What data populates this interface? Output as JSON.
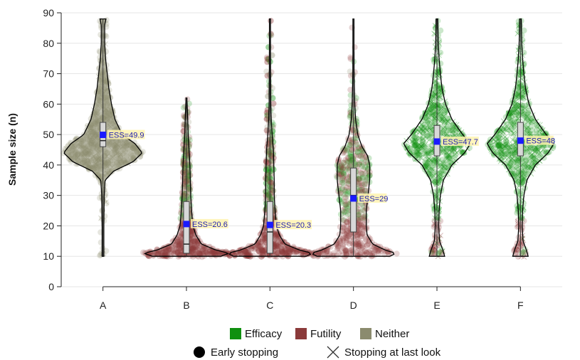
{
  "chart_data": {
    "type": "violin",
    "title": "",
    "xlabel": "",
    "ylabel": "Sample size (n)",
    "ylim": [
      0,
      90
    ],
    "yticks": [
      0,
      10,
      20,
      30,
      40,
      50,
      60,
      70,
      80,
      90
    ],
    "grid": true,
    "categories": [
      "A",
      "B",
      "C",
      "D",
      "E",
      "F"
    ],
    "groups": [
      {
        "name": "A",
        "ess": 49.9,
        "ess_label": "ESS=49.9",
        "q1": 46,
        "median": 48,
        "q3": 54,
        "min": 10,
        "max": 88,
        "dominant": "Neither",
        "violin": [
          [
            10,
            0.02
          ],
          [
            20,
            0.02
          ],
          [
            30,
            0.03
          ],
          [
            35,
            0.05
          ],
          [
            38,
            0.25
          ],
          [
            41,
            0.7
          ],
          [
            44,
            0.92
          ],
          [
            47,
            0.75
          ],
          [
            50,
            0.45
          ],
          [
            55,
            0.28
          ],
          [
            60,
            0.2
          ],
          [
            65,
            0.14
          ],
          [
            70,
            0.1
          ],
          [
            75,
            0.06
          ],
          [
            80,
            0.04
          ],
          [
            86,
            0.04
          ],
          [
            88,
            0.07
          ]
        ]
      },
      {
        "name": "B",
        "ess": 20.6,
        "ess_label": "ESS=20.6",
        "q1": 11,
        "median": 14,
        "q3": 28,
        "min": 10,
        "max": 62,
        "dominant": "Futility",
        "violin": [
          [
            10,
            0.8
          ],
          [
            11,
            1.0
          ],
          [
            12,
            0.7
          ],
          [
            14,
            0.35
          ],
          [
            17,
            0.22
          ],
          [
            20,
            0.15
          ],
          [
            25,
            0.12
          ],
          [
            30,
            0.1
          ],
          [
            35,
            0.09
          ],
          [
            40,
            0.08
          ],
          [
            45,
            0.06
          ],
          [
            50,
            0.04
          ],
          [
            55,
            0.03
          ],
          [
            62,
            0.01
          ]
        ]
      },
      {
        "name": "C",
        "ess": 20.3,
        "ess_label": "ESS=20.3",
        "q1": 11,
        "median": 18,
        "q3": 28,
        "min": 10,
        "max": 88,
        "dominant": "Futility",
        "violin": [
          [
            10,
            0.85
          ],
          [
            11,
            1.0
          ],
          [
            12,
            0.7
          ],
          [
            14,
            0.35
          ],
          [
            17,
            0.22
          ],
          [
            20,
            0.15
          ],
          [
            25,
            0.12
          ],
          [
            30,
            0.1
          ],
          [
            35,
            0.1
          ],
          [
            40,
            0.09
          ],
          [
            45,
            0.08
          ],
          [
            50,
            0.05
          ],
          [
            55,
            0.03
          ],
          [
            60,
            0.02
          ],
          [
            70,
            0.015
          ],
          [
            88,
            0.01
          ]
        ]
      },
      {
        "name": "D",
        "ess": 29,
        "ess_label": "ESS=29",
        "q1": 18,
        "median": 30,
        "q3": 39,
        "min": 10,
        "max": 88,
        "dominant": "Futility",
        "violin": [
          [
            10,
            0.85
          ],
          [
            11,
            1.0
          ],
          [
            12,
            0.75
          ],
          [
            14,
            0.45
          ],
          [
            17,
            0.32
          ],
          [
            20,
            0.3
          ],
          [
            25,
            0.3
          ],
          [
            30,
            0.34
          ],
          [
            35,
            0.38
          ],
          [
            40,
            0.38
          ],
          [
            43,
            0.33
          ],
          [
            46,
            0.2
          ],
          [
            50,
            0.1
          ],
          [
            55,
            0.05
          ],
          [
            60,
            0.03
          ],
          [
            70,
            0.015
          ],
          [
            88,
            0.01
          ]
        ]
      },
      {
        "name": "E",
        "ess": 47.7,
        "ess_label": "ESS=47.7",
        "q1": 43,
        "median": 48,
        "q3": 53,
        "min": 10,
        "max": 88,
        "dominant": "Efficacy",
        "violin": [
          [
            10,
            0.18
          ],
          [
            12,
            0.14
          ],
          [
            15,
            0.06
          ],
          [
            20,
            0.04
          ],
          [
            25,
            0.05
          ],
          [
            30,
            0.08
          ],
          [
            35,
            0.15
          ],
          [
            40,
            0.35
          ],
          [
            44,
            0.65
          ],
          [
            47,
            0.78
          ],
          [
            50,
            0.6
          ],
          [
            55,
            0.35
          ],
          [
            60,
            0.2
          ],
          [
            65,
            0.12
          ],
          [
            70,
            0.08
          ],
          [
            75,
            0.05
          ],
          [
            80,
            0.03
          ],
          [
            88,
            0.02
          ]
        ]
      },
      {
        "name": "F",
        "ess": 48,
        "ess_label": "ESS=48",
        "q1": 43,
        "median": 48,
        "q3": 54,
        "min": 10,
        "max": 88,
        "dominant": "Efficacy",
        "violin": [
          [
            10,
            0.18
          ],
          [
            12,
            0.14
          ],
          [
            15,
            0.06
          ],
          [
            20,
            0.04
          ],
          [
            25,
            0.05
          ],
          [
            30,
            0.08
          ],
          [
            35,
            0.15
          ],
          [
            40,
            0.35
          ],
          [
            44,
            0.65
          ],
          [
            47,
            0.78
          ],
          [
            50,
            0.6
          ],
          [
            55,
            0.35
          ],
          [
            60,
            0.2
          ],
          [
            65,
            0.12
          ],
          [
            70,
            0.08
          ],
          [
            75,
            0.05
          ],
          [
            80,
            0.03
          ],
          [
            88,
            0.02
          ]
        ]
      }
    ],
    "legend": {
      "placement": "bottom",
      "fills": [
        {
          "label": "Efficacy",
          "color": "#109010"
        },
        {
          "label": "Futility",
          "color": "#8b3a3a"
        },
        {
          "label": "Neither",
          "color": "#8b8b6e"
        }
      ],
      "shapes": [
        {
          "label": "Early stopping",
          "shape": "circle"
        },
        {
          "label": "Stopping at last look",
          "shape": "cross"
        }
      ]
    },
    "colors": {
      "efficacy": "#109010",
      "futility": "#8b3a3a",
      "neither": "#8b8b6e",
      "ess_marker": "#1a1aff",
      "ess_label_bg": "#fff3b0"
    }
  }
}
